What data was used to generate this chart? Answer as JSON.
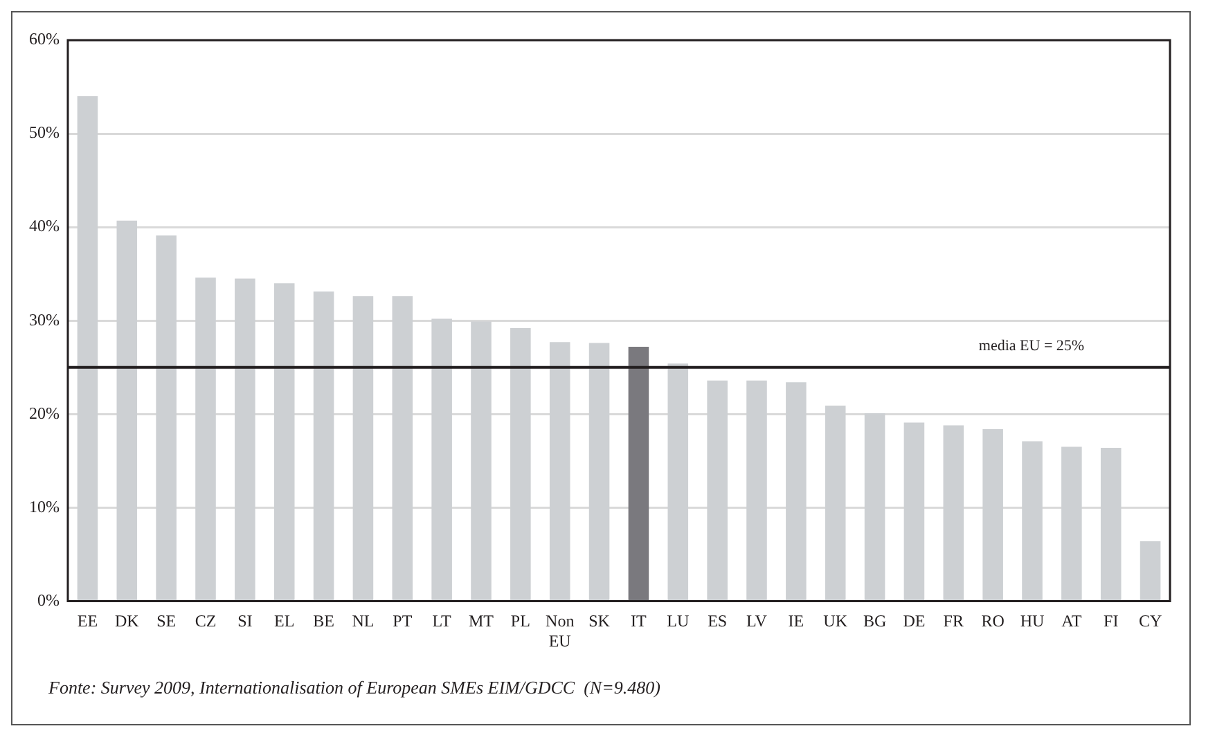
{
  "chart_data": {
    "type": "bar",
    "categories": [
      "EE",
      "DK",
      "SE",
      "CZ",
      "SI",
      "EL",
      "BE",
      "NL",
      "PT",
      "LT",
      "MT",
      "PL",
      "Non EU",
      "SK",
      "IT",
      "LU",
      "ES",
      "LV",
      "IE",
      "UK",
      "BG",
      "DE",
      "FR",
      "RO",
      "HU",
      "AT",
      "FI",
      "CY"
    ],
    "values": [
      54,
      40.7,
      39.1,
      34.6,
      34.5,
      34.0,
      33.1,
      32.6,
      32.6,
      30.2,
      29.9,
      29.2,
      27.7,
      27.6,
      27.2,
      25.4,
      23.6,
      23.6,
      23.4,
      20.9,
      20.1,
      19.1,
      18.8,
      18.4,
      17.1,
      16.5,
      16.4,
      6.4
    ],
    "colors": [
      "#cdd0d3",
      "#cdd0d3",
      "#cdd0d3",
      "#cdd0d3",
      "#cdd0d3",
      "#cdd0d3",
      "#cdd0d3",
      "#cdd0d3",
      "#cdd0d3",
      "#cdd0d3",
      "#cdd0d3",
      "#cdd0d3",
      "#cdd0d3",
      "#cdd0d3",
      "#7a797e",
      "#cdd0d3",
      "#cdd0d3",
      "#cdd0d3",
      "#cdd0d3",
      "#cdd0d3",
      "#cdd0d3",
      "#cdd0d3",
      "#cdd0d3",
      "#cdd0d3",
      "#cdd0d3",
      "#cdd0d3",
      "#cdd0d3",
      "#cdd0d3"
    ],
    "ylim": [
      0,
      60
    ],
    "yticks": [
      {
        "value": 0,
        "label": "0%"
      },
      {
        "value": 10,
        "label": "10%"
      },
      {
        "value": 20,
        "label": "20%"
      },
      {
        "value": 30,
        "label": "30%"
      },
      {
        "value": 40,
        "label": "40%"
      },
      {
        "value": 50,
        "label": "50%"
      },
      {
        "value": 60,
        "label": "60%"
      }
    ],
    "grid": "y",
    "legend": false,
    "ref_lines": [
      {
        "axis": "y",
        "value": 25,
        "label": "media EU = 25%",
        "color": "#231f20"
      }
    ],
    "annotations": [
      "Fonte: Survey 2009, Internationalisation of European SMEs EIM/GDCC  (N=9.480)"
    ]
  }
}
